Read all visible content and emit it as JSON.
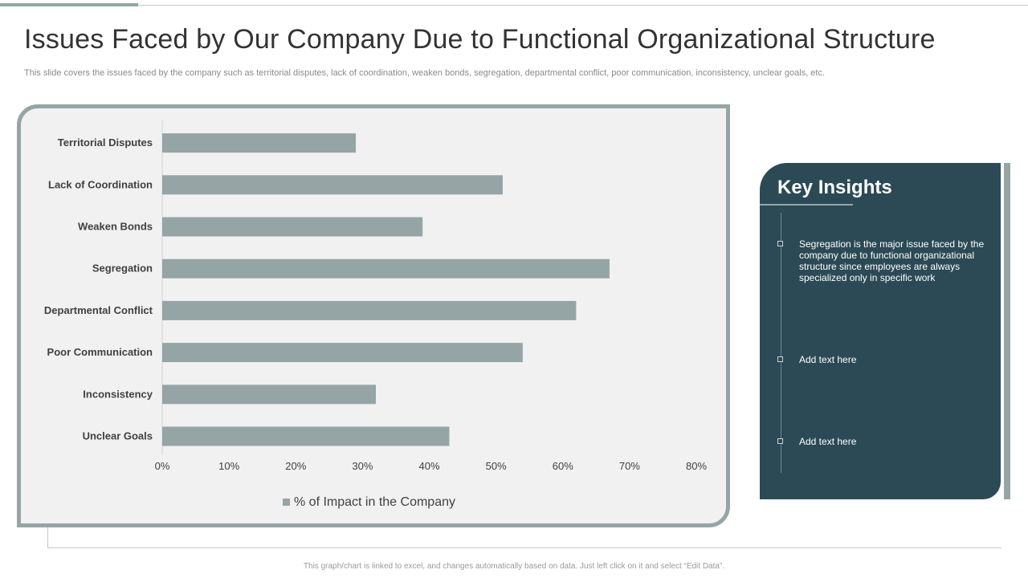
{
  "slide": {
    "title": "Issues Faced by Our Company Due to Functional Organizational Structure",
    "subtitle": "This slide covers the issues faced by the company such as territorial disputes, lack of coordination, weaken bonds, segregation, departmental conflict, poor communication, inconsistency, unclear goals, etc.",
    "footer": "This graph/chart is linked to excel, and changes automatically based on data. Just left click on it and select “Edit Data”."
  },
  "colors": {
    "bar": "#95a5a6",
    "frame": "#95a5a6",
    "panel": "#2b4a55",
    "chart_bg": "#f1f1f1"
  },
  "chart_data": {
    "type": "bar",
    "orientation": "horizontal",
    "categories": [
      "Territorial Disputes",
      "Lack of Coordination",
      "Weaken Bonds",
      "Segregation",
      "Departmental Conflict",
      "Poor Communication",
      "Inconsistency",
      "Unclear Goals"
    ],
    "series": [
      {
        "name": "% of Impact in the Company",
        "values": [
          29,
          51,
          39,
          67,
          62,
          54,
          32,
          43
        ]
      }
    ],
    "xlim": [
      0,
      80
    ],
    "x_ticks": [
      "0%",
      "10%",
      "20%",
      "30%",
      "40%",
      "50%",
      "60%",
      "70%",
      "80%"
    ],
    "grid": false,
    "legend_position": "bottom"
  },
  "insights": {
    "title": "Key Insights",
    "items": [
      {
        "text": "Segregation is the major issue faced by the company due to functional organizational structure since employees are always specialized only in specific work"
      },
      {
        "text": "Add text here"
      },
      {
        "text": "Add text here"
      }
    ]
  }
}
